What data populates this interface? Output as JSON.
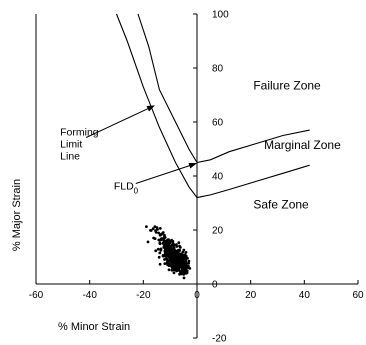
{
  "chart_data": {
    "type": "scatter",
    "title": "",
    "xlabel": "% Minor Strain",
    "ylabel": "% Major Strain",
    "xlim": [
      -60,
      60
    ],
    "ylim": [
      -20,
      100
    ],
    "x_ticks": [
      -60,
      -40,
      -20,
      0,
      20,
      40,
      60
    ],
    "y_ticks": [
      -20,
      0,
      20,
      40,
      60,
      80,
      100
    ],
    "x_tick_labels": [
      "-60",
      "-40",
      "-20",
      "0",
      "20",
      "40",
      "60"
    ],
    "y_tick_labels": [
      "-20",
      "0",
      "20",
      "40",
      "60",
      "80",
      "100"
    ],
    "grid": false,
    "legend": "none",
    "series": [
      {
        "kind": "line",
        "points": [
          [
            -30,
            100
          ],
          [
            -26,
            90
          ],
          [
            -20,
            73
          ],
          [
            -14,
            58
          ],
          [
            -8,
            45
          ],
          [
            -3,
            36
          ],
          [
            0,
            32
          ],
          [
            5,
            33
          ],
          [
            12,
            35
          ],
          [
            22,
            38
          ],
          [
            32,
            41
          ],
          [
            42,
            44
          ]
        ]
      },
      {
        "kind": "line",
        "points": [
          [
            -22,
            100
          ],
          [
            -18,
            88
          ],
          [
            -14,
            72
          ],
          [
            -8,
            60
          ],
          [
            -3,
            50
          ],
          [
            0,
            45
          ],
          [
            5,
            46
          ],
          [
            12,
            49
          ],
          [
            22,
            52
          ],
          [
            32,
            55
          ],
          [
            42,
            57
          ]
        ]
      },
      {
        "kind": "scatter",
        "color": "#000000",
        "center": [
          -5,
          6
        ],
        "count": 450
      }
    ],
    "zones": [
      {
        "label": "Failure Zone",
        "x": 21,
        "y": 72
      },
      {
        "label": "Marginal Zone",
        "x": 25,
        "y": 50
      },
      {
        "label": "Safe Zone",
        "x": 21,
        "y": 28
      }
    ],
    "annotations": [
      {
        "lines": [
          "Forming",
          "Limit",
          "Line"
        ],
        "x": -51,
        "y": 55,
        "arrow_to": [
          -16,
          66
        ]
      },
      {
        "text": "FLD",
        "subscript": "0",
        "x": -31,
        "y": 35,
        "arrow_to": [
          0,
          45
        ]
      }
    ]
  }
}
